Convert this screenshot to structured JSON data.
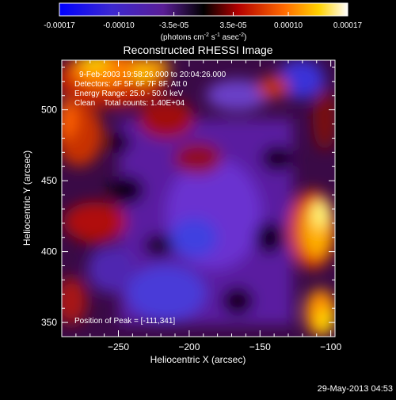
{
  "colorbar": {
    "tick_labels": [
      "-0.00017",
      "-0.00010",
      "-3.5e-05",
      "3.5e-05",
      "0.00010",
      "0.00017"
    ],
    "tick_values": [
      -0.00017,
      -0.0001,
      -3.5e-05,
      3.5e-05,
      0.0001,
      0.00017
    ],
    "range": [
      -0.00017,
      0.00017
    ],
    "units_prefix": "(photons cm",
    "units_exp1": "-2",
    "units_mid": " s",
    "units_exp2": "-1",
    "units_mid2": " asec",
    "units_exp3": "-2",
    "units_suffix": ")",
    "colors": [
      "#0000ff",
      "#5a1ec8",
      "#140014",
      "#c80000",
      "#ff8000",
      "#ffff00",
      "#ffffff"
    ]
  },
  "chart_data": {
    "type": "heatmap",
    "title": "Reconstructed RHESSI Image",
    "xlabel": "Heliocentric X (arcsec)",
    "ylabel": "Heliocentric Y (arcsec)",
    "xlim": [
      -290,
      -97
    ],
    "ylim": [
      340,
      535
    ],
    "x_ticks": [
      -250,
      -200,
      -150,
      -100
    ],
    "y_ticks": [
      350,
      400,
      450,
      500
    ],
    "x_tick_labels": [
      "−250",
      "−200",
      "−150",
      "−100"
    ],
    "y_tick_labels": [
      "350",
      "400",
      "450",
      "500"
    ],
    "annotations": [
      "9-Feb-2003 19:58:26.000 to 20:04:26.000",
      "Detectors: 4F 5F 6F 7F 8F, Att 0",
      "Energy Range: 25.0 - 50.0 keV",
      "Clean    Total counts: 1.40E+04"
    ],
    "peak_label": "Position of Peak = [-111,341]",
    "peak": [
      -111,
      341
    ]
  },
  "footer": {
    "date": "29-May-2013 04:53"
  }
}
